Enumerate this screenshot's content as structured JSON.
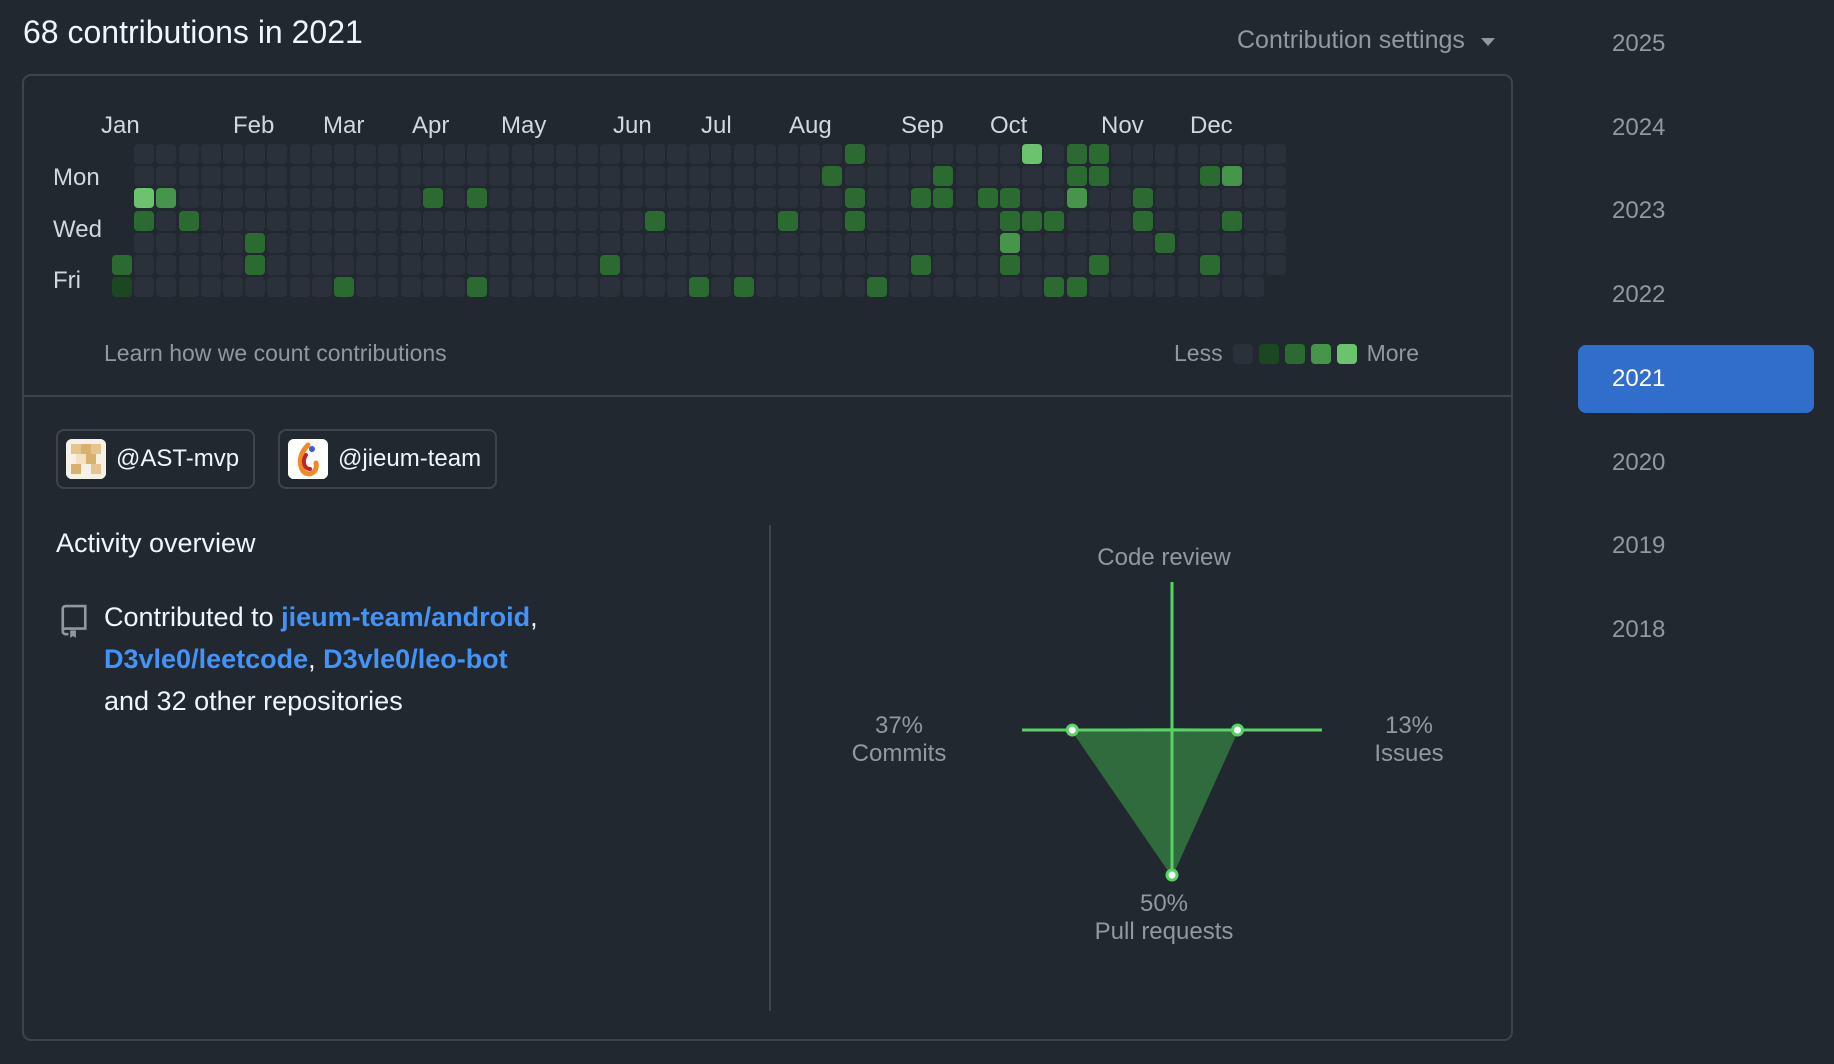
{
  "header": {
    "title": "68 contributions in 2021",
    "settings_label": "Contribution settings"
  },
  "calendar": {
    "months": [
      "Jan",
      "Feb",
      "Mar",
      "Apr",
      "May",
      "Jun",
      "Jul",
      "Aug",
      "Sep",
      "Oct",
      "Nov",
      "Dec"
    ],
    "day_labels": [
      "Mon",
      "Wed",
      "Fri"
    ],
    "weeks": 53,
    "first_weekday_row": 5,
    "colors": {
      "0": "#2a313b",
      "1": "#1b4721",
      "2": "#2b6a30",
      "3": "#46954a",
      "4": "#6bc46d"
    },
    "active_cells": [
      [
        0,
        5,
        2
      ],
      [
        0,
        6,
        1
      ],
      [
        1,
        2,
        4
      ],
      [
        1,
        3,
        2
      ],
      [
        2,
        2,
        3
      ],
      [
        3,
        3,
        2
      ],
      [
        6,
        4,
        2
      ],
      [
        6,
        5,
        2
      ],
      [
        10,
        6,
        2
      ],
      [
        14,
        2,
        2
      ],
      [
        16,
        6,
        2
      ],
      [
        16,
        2,
        2
      ],
      [
        22,
        5,
        2
      ],
      [
        24,
        3,
        2
      ],
      [
        26,
        6,
        2
      ],
      [
        28,
        6,
        2
      ],
      [
        30,
        3,
        2
      ],
      [
        32,
        1,
        2
      ],
      [
        33,
        0,
        2
      ],
      [
        33,
        2,
        2
      ],
      [
        33,
        3,
        2
      ],
      [
        34,
        6,
        2
      ],
      [
        36,
        2,
        2
      ],
      [
        36,
        5,
        2
      ],
      [
        37,
        1,
        2
      ],
      [
        37,
        2,
        2
      ],
      [
        39,
        2,
        2
      ],
      [
        40,
        2,
        2
      ],
      [
        40,
        3,
        2
      ],
      [
        40,
        4,
        3
      ],
      [
        40,
        5,
        2
      ],
      [
        41,
        0,
        4
      ],
      [
        41,
        3,
        2
      ],
      [
        42,
        3,
        2
      ],
      [
        42,
        6,
        2
      ],
      [
        43,
        0,
        2
      ],
      [
        43,
        1,
        2
      ],
      [
        43,
        2,
        3
      ],
      [
        43,
        6,
        2
      ],
      [
        44,
        0,
        2
      ],
      [
        44,
        1,
        2
      ],
      [
        44,
        5,
        2
      ],
      [
        46,
        2,
        2
      ],
      [
        46,
        3,
        2
      ],
      [
        47,
        4,
        2
      ],
      [
        49,
        1,
        2
      ],
      [
        49,
        5,
        2
      ],
      [
        50,
        1,
        3
      ],
      [
        50,
        3,
        2
      ]
    ],
    "learn_link": "Learn how we count contributions",
    "legend_less": "Less",
    "legend_more": "More"
  },
  "orgs": [
    {
      "handle": "@AST-mvp",
      "avatar_icon": "ast-mvp-avatar"
    },
    {
      "handle": "@jieum-team",
      "avatar_icon": "jieum-team-avatar"
    }
  ],
  "overview": {
    "title": "Activity overview",
    "contrib_prefix": "Contributed to ",
    "repo1": "jieum-team/android",
    "sep1": ",",
    "repo2": "D3vle0/leetcode",
    "sep2": ", ",
    "repo3": "D3vle0/leo-bot",
    "suffix": "and 32 other repositories"
  },
  "activity_chart": {
    "code_review_label": "Code review",
    "commits_pct": "37%",
    "commits_label": "Commits",
    "issues_pct": "13%",
    "issues_label": "Issues",
    "prs_pct": "50%",
    "prs_label": "Pull requests",
    "values": {
      "commits": 37,
      "issues": 13,
      "pull_requests": 50,
      "code_review": 0
    },
    "color": "#56d364"
  },
  "years": [
    "2025",
    "2024",
    "2023",
    "2022",
    "2021",
    "2020",
    "2019",
    "2018"
  ],
  "selected_year": "2021"
}
